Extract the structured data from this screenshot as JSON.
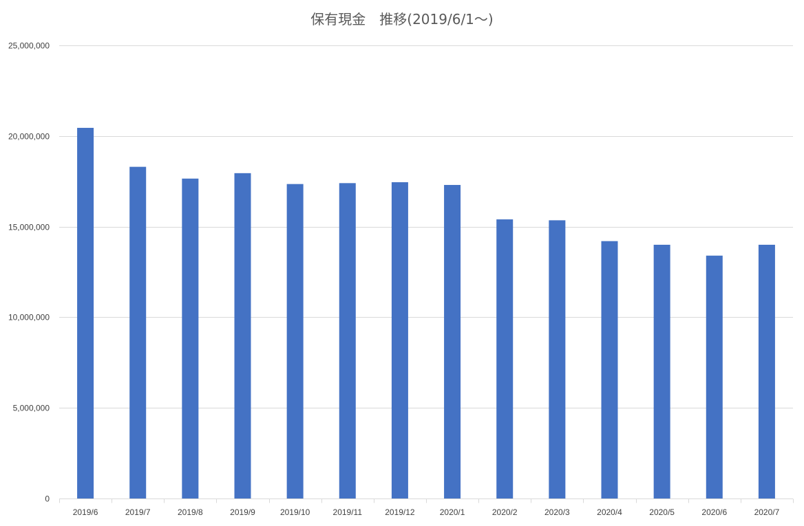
{
  "chart_data": {
    "type": "bar",
    "title": "保有現金　推移(2019/6/1～)",
    "xlabel": "",
    "ylabel": "",
    "categories": [
      "2019/6",
      "2019/7",
      "2019/8",
      "2019/9",
      "2019/10",
      "2019/11",
      "2019/12",
      "2020/1",
      "2020/2",
      "2020/3",
      "2020/4",
      "2020/5",
      "2020/6",
      "2020/7"
    ],
    "values": [
      20450000,
      18300000,
      17650000,
      17950000,
      17350000,
      17400000,
      17450000,
      17300000,
      15400000,
      15350000,
      14200000,
      14000000,
      13400000,
      14000000
    ],
    "ylim": [
      0,
      25000000
    ],
    "yticks": [
      0,
      5000000,
      10000000,
      15000000,
      20000000,
      25000000
    ],
    "ytick_labels": [
      "0",
      "5,000,000",
      "10,000,000",
      "15,000,000",
      "20,000,000",
      "25,000,000"
    ],
    "grid": true,
    "legend": "none",
    "bar_color": "#4472c4"
  }
}
